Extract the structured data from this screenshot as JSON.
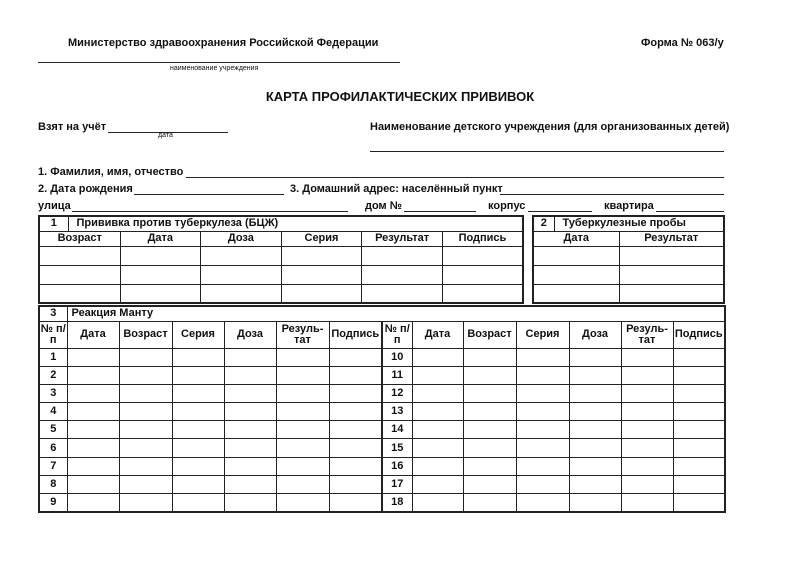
{
  "header": {
    "ministry": "Министерство здравоохранения Российской Федерации",
    "form_number": "Форма № 063/у",
    "institution_caption": "наименование учреждения"
  },
  "title": "КАРТА ПРОФИЛАКТИЧЕСКИХ ПРИВИВОК",
  "fields": {
    "registered": "Взят на учёт",
    "date_caption": "дата",
    "child_institution": "Наименование детского учреждения (для организованных детей)",
    "full_name": "1. Фамилия, имя, отчество",
    "birth_date": "2. Дата рождения",
    "address": "3. Домашний адрес: населённый пункт",
    "street": "улица",
    "house": "дом №",
    "building": "корпус",
    "apartment": "квартира"
  },
  "table1": {
    "number": "1",
    "title": "Прививка против туберкулеза (БЦЖ)",
    "columns": [
      "Возраст",
      "Дата",
      "Доза",
      "Серия",
      "Результат",
      "Подпись"
    ]
  },
  "table2": {
    "number": "2",
    "title": "Туберкулезные пробы",
    "columns": [
      "Дата",
      "Результат"
    ]
  },
  "table3": {
    "number": "3",
    "title": "Реакция Манту",
    "columns": [
      "№ п/п",
      "Дата",
      "Возраст",
      "Серия",
      "Доза",
      "Резуль-тат",
      "Подпись",
      "№ п/п",
      "Дата",
      "Возраст",
      "Серия",
      "Доза",
      "Резуль-тат",
      "Подпись"
    ],
    "left_rows": [
      "1",
      "2",
      "3",
      "4",
      "5",
      "6",
      "7",
      "8",
      "9"
    ],
    "right_rows": [
      "10",
      "11",
      "12",
      "13",
      "14",
      "15",
      "16",
      "17",
      "18"
    ]
  }
}
